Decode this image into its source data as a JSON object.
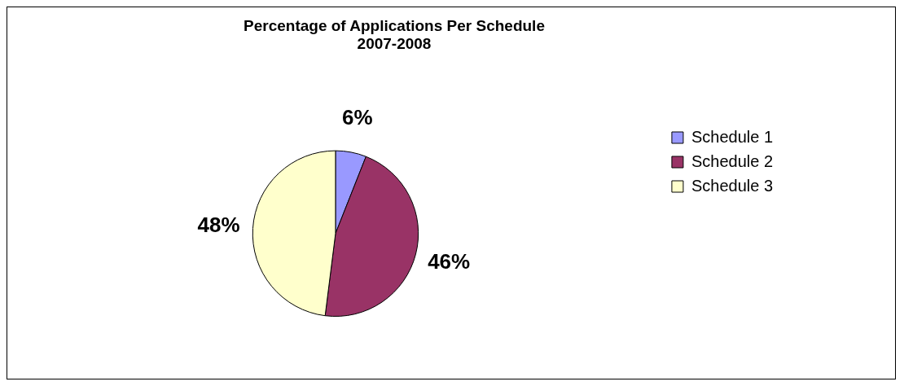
{
  "chart_data": {
    "type": "pie",
    "title": "Percentage of Applications Per Schedule\n2007-2008",
    "categories": [
      "Schedule 1",
      "Schedule 2",
      "Schedule 3"
    ],
    "values": [
      6,
      46,
      48
    ],
    "colors": [
      "#9999ff",
      "#993366",
      "#ffffcc"
    ],
    "value_labels": [
      "6%",
      "46%",
      "48%"
    ],
    "legend": "right"
  }
}
